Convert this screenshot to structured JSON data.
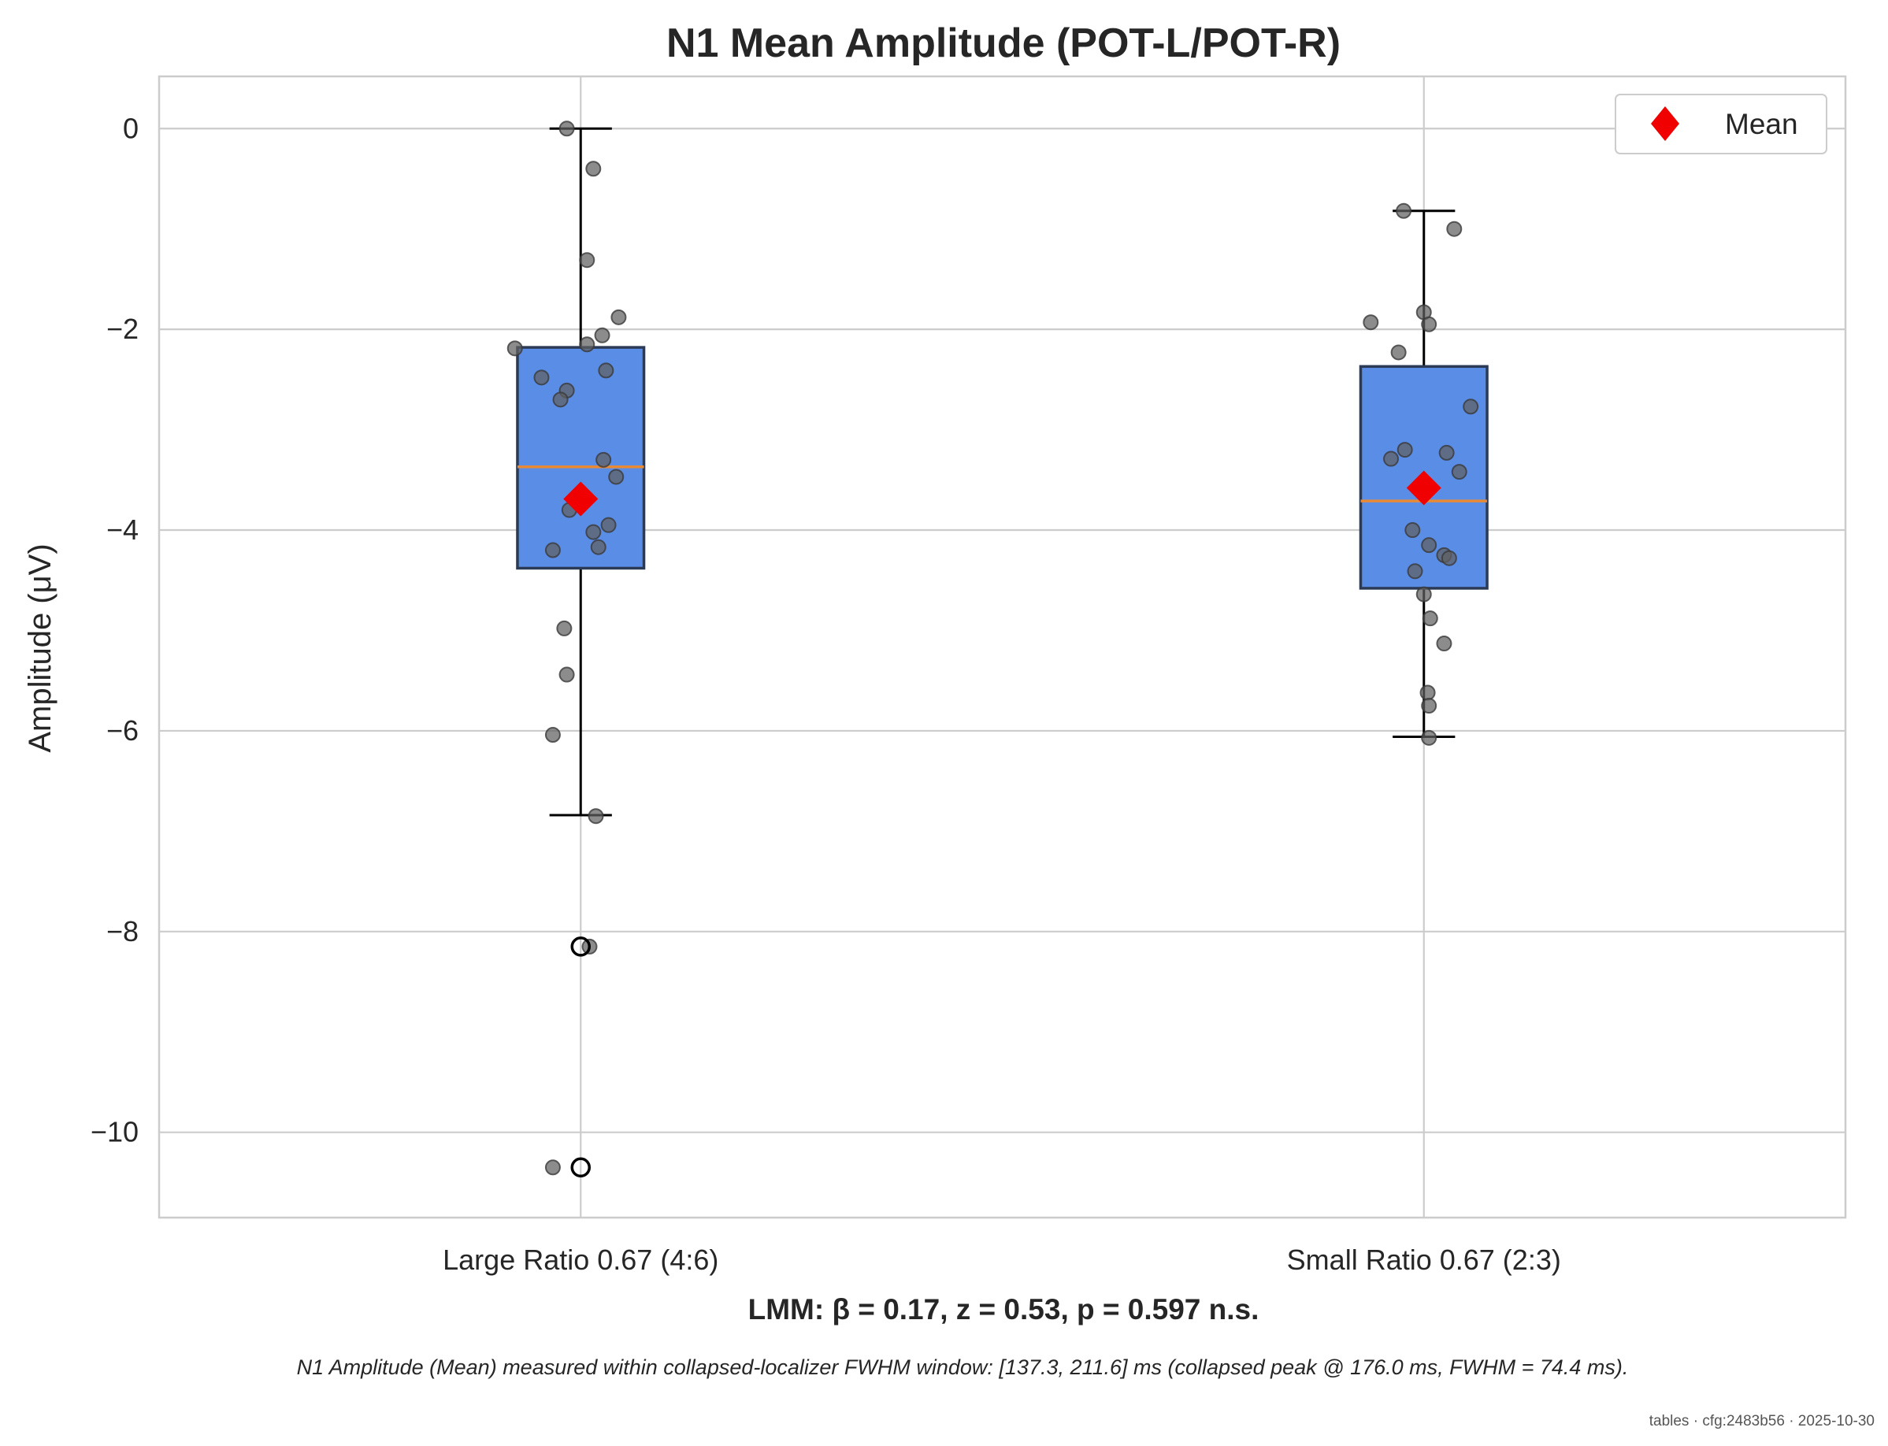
{
  "chart_data": {
    "type": "box",
    "title": "N1 Mean Amplitude (POT-L/POT-R)",
    "ylabel": "Amplitude (μV)",
    "xlabel": "",
    "ylim": [
      -10.85,
      0.52
    ],
    "yticks": [
      0,
      -2,
      -4,
      -6,
      -8,
      -10
    ],
    "ytick_labels": [
      "0",
      "−2",
      "−4",
      "−6",
      "−8",
      "−10"
    ],
    "grid": true,
    "legend": {
      "position": "top-right",
      "entries": [
        {
          "label": "Mean",
          "marker": "diamond",
          "color": "#f00000"
        }
      ]
    },
    "colors": {
      "box": "#5a8ee6",
      "median": "#e88a35",
      "mean": "#f00000",
      "points": "#5f5f5f"
    },
    "categories": [
      "Large Ratio 0.67 (4:6)",
      "Small Ratio 0.67 (2:3)"
    ],
    "boxes": [
      {
        "category": "Large Ratio 0.67 (4:6)",
        "q1": -4.38,
        "median": -3.37,
        "q3": -2.18,
        "whisker_low": -6.84,
        "whisker_high": 0.0,
        "mean": -3.69,
        "outliers": [
          -8.15,
          -10.35
        ],
        "points": [
          {
            "jitter": -0.11,
            "y": 0.0
          },
          {
            "jitter": 0.1,
            "y": -0.4
          },
          {
            "jitter": 0.05,
            "y": -1.31
          },
          {
            "jitter": 0.3,
            "y": -1.88
          },
          {
            "jitter": 0.17,
            "y": -2.06
          },
          {
            "jitter": 0.05,
            "y": -2.15
          },
          {
            "jitter": -0.52,
            "y": -2.19
          },
          {
            "jitter": 0.2,
            "y": -2.41
          },
          {
            "jitter": -0.31,
            "y": -2.48
          },
          {
            "jitter": -0.11,
            "y": -2.61
          },
          {
            "jitter": -0.16,
            "y": -2.7
          },
          {
            "jitter": 0.18,
            "y": -3.3
          },
          {
            "jitter": 0.28,
            "y": -3.47
          },
          {
            "jitter": -0.09,
            "y": -3.8
          },
          {
            "jitter": 0.22,
            "y": -3.95
          },
          {
            "jitter": 0.1,
            "y": -4.02
          },
          {
            "jitter": 0.14,
            "y": -4.17
          },
          {
            "jitter": -0.22,
            "y": -4.2
          },
          {
            "jitter": -0.13,
            "y": -4.98
          },
          {
            "jitter": -0.11,
            "y": -5.44
          },
          {
            "jitter": -0.22,
            "y": -6.04
          },
          {
            "jitter": 0.12,
            "y": -6.85
          },
          {
            "jitter": 0.07,
            "y": -8.15
          },
          {
            "jitter": -0.22,
            "y": -10.35
          }
        ]
      },
      {
        "category": "Small Ratio 0.67 (2:3)",
        "q1": -4.58,
        "median": -3.71,
        "q3": -2.37,
        "whisker_low": -6.06,
        "whisker_high": -0.82,
        "mean": -3.58,
        "outliers": [],
        "points": [
          {
            "jitter": -0.16,
            "y": -0.82
          },
          {
            "jitter": 0.24,
            "y": -1.0
          },
          {
            "jitter": 0.0,
            "y": -1.83
          },
          {
            "jitter": -0.42,
            "y": -1.93
          },
          {
            "jitter": 0.04,
            "y": -1.95
          },
          {
            "jitter": -0.2,
            "y": -2.23
          },
          {
            "jitter": 0.37,
            "y": -2.77
          },
          {
            "jitter": -0.26,
            "y": -3.29
          },
          {
            "jitter": -0.15,
            "y": -3.2
          },
          {
            "jitter": 0.18,
            "y": -3.23
          },
          {
            "jitter": 0.28,
            "y": -3.42
          },
          {
            "jitter": -0.09,
            "y": -4.0
          },
          {
            "jitter": 0.04,
            "y": -4.15
          },
          {
            "jitter": 0.16,
            "y": -4.25
          },
          {
            "jitter": 0.2,
            "y": -4.28
          },
          {
            "jitter": -0.07,
            "y": -4.41
          },
          {
            "jitter": 0.0,
            "y": -4.64
          },
          {
            "jitter": 0.05,
            "y": -4.88
          },
          {
            "jitter": 0.16,
            "y": -5.13
          },
          {
            "jitter": 0.03,
            "y": -5.62
          },
          {
            "jitter": 0.04,
            "y": -5.75
          },
          {
            "jitter": 0.04,
            "y": -6.07
          }
        ]
      }
    ]
  },
  "stat_label": "LMM: β = 0.17, z = 0.53, p = 0.597 n.s.",
  "caption": "N1 Amplitude (Mean) measured within collapsed-localizer FWHM window: [137.3, 211.6] ms (collapsed peak @ 176.0 ms, FWHM = 74.4 ms).",
  "footer": "tables · cfg:2483b56 · 2025-10-30"
}
